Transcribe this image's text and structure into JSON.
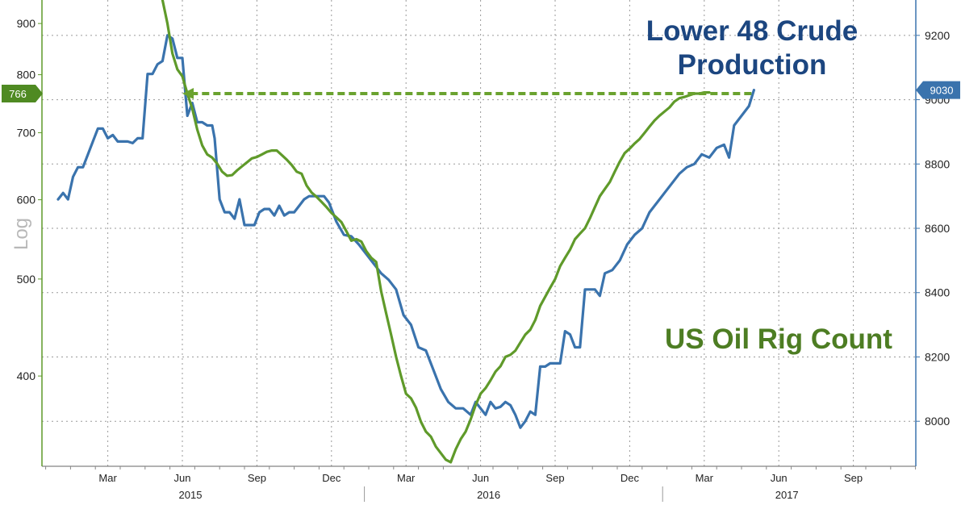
{
  "chart_data": {
    "type": "line",
    "left_axis": {
      "scale_label": "Log",
      "scale": "log",
      "ticks": [
        400,
        500,
        600,
        700,
        800,
        900
      ],
      "range": [
        325,
        950
      ],
      "marker": {
        "value": 766,
        "label": "766"
      }
    },
    "right_axis": {
      "ticks": [
        8000,
        8200,
        8400,
        8600,
        8800,
        9000,
        9200
      ],
      "range": [
        7860,
        9310
      ],
      "marker": {
        "value": 9030,
        "label": "9030"
      }
    },
    "x_axis": {
      "months": [
        {
          "t": 2,
          "label": "Mar"
        },
        {
          "t": 5,
          "label": "Jun"
        },
        {
          "t": 8,
          "label": "Sep"
        },
        {
          "t": 11,
          "label": "Dec"
        },
        {
          "t": 14,
          "label": "Mar"
        },
        {
          "t": 17,
          "label": "Jun"
        },
        {
          "t": 20,
          "label": "Sep"
        },
        {
          "t": 23,
          "label": "Dec"
        },
        {
          "t": 26,
          "label": "Mar"
        },
        {
          "t": 29,
          "label": "Jun"
        },
        {
          "t": 32,
          "label": "Sep"
        }
      ],
      "years": [
        {
          "t": 5,
          "label": "2015"
        },
        {
          "t": 17,
          "label": "2016"
        },
        {
          "t": 29,
          "label": "2017"
        }
      ],
      "year_separators": [
        12,
        24
      ]
    },
    "series": [
      {
        "name": "Lower 48 Crude Production",
        "axis": "right",
        "color": "#3a73ad",
        "points": [
          [
            0.0,
            8690
          ],
          [
            0.2,
            8710
          ],
          [
            0.4,
            8690
          ],
          [
            0.6,
            8760
          ],
          [
            0.8,
            8790
          ],
          [
            1.0,
            8790
          ],
          [
            1.2,
            8830
          ],
          [
            1.4,
            8870
          ],
          [
            1.6,
            8910
          ],
          [
            1.8,
            8910
          ],
          [
            2.0,
            8880
          ],
          [
            2.2,
            8890
          ],
          [
            2.4,
            8870
          ],
          [
            2.6,
            8870
          ],
          [
            2.8,
            8870
          ],
          [
            3.0,
            8865
          ],
          [
            3.2,
            8880
          ],
          [
            3.4,
            8880
          ],
          [
            3.6,
            9080
          ],
          [
            3.8,
            9080
          ],
          [
            4.0,
            9110
          ],
          [
            4.2,
            9120
          ],
          [
            4.4,
            9200
          ],
          [
            4.6,
            9190
          ],
          [
            4.8,
            9130
          ],
          [
            5.0,
            9130
          ],
          [
            5.2,
            8950
          ],
          [
            5.4,
            8990
          ],
          [
            5.6,
            8930
          ],
          [
            5.8,
            8930
          ],
          [
            6.0,
            8920
          ],
          [
            6.2,
            8920
          ],
          [
            6.3,
            8880
          ],
          [
            6.5,
            8690
          ],
          [
            6.7,
            8650
          ],
          [
            6.9,
            8650
          ],
          [
            7.1,
            8630
          ],
          [
            7.3,
            8690
          ],
          [
            7.5,
            8610
          ],
          [
            7.7,
            8610
          ],
          [
            7.9,
            8610
          ],
          [
            8.1,
            8650
          ],
          [
            8.3,
            8660
          ],
          [
            8.5,
            8660
          ],
          [
            8.7,
            8640
          ],
          [
            8.9,
            8670
          ],
          [
            9.1,
            8640
          ],
          [
            9.3,
            8650
          ],
          [
            9.5,
            8650
          ],
          [
            9.7,
            8670
          ],
          [
            9.9,
            8690
          ],
          [
            10.1,
            8700
          ],
          [
            10.3,
            8700
          ],
          [
            10.5,
            8700
          ],
          [
            10.7,
            8700
          ],
          [
            10.9,
            8680
          ],
          [
            11.2,
            8620
          ],
          [
            11.5,
            8580
          ],
          [
            11.8,
            8575
          ],
          [
            12.1,
            8550
          ],
          [
            12.4,
            8520
          ],
          [
            12.7,
            8490
          ],
          [
            13.0,
            8460
          ],
          [
            13.3,
            8440
          ],
          [
            13.6,
            8410
          ],
          [
            13.9,
            8330
          ],
          [
            14.2,
            8300
          ],
          [
            14.5,
            8230
          ],
          [
            14.8,
            8220
          ],
          [
            15.1,
            8160
          ],
          [
            15.4,
            8100
          ],
          [
            15.7,
            8060
          ],
          [
            16.0,
            8040
          ],
          [
            16.3,
            8040
          ],
          [
            16.6,
            8020
          ],
          [
            16.8,
            8060
          ],
          [
            17.0,
            8040
          ],
          [
            17.2,
            8020
          ],
          [
            17.4,
            8060
          ],
          [
            17.6,
            8040
          ],
          [
            17.8,
            8045
          ],
          [
            18.0,
            8060
          ],
          [
            18.2,
            8050
          ],
          [
            18.4,
            8020
          ],
          [
            18.6,
            7980
          ],
          [
            18.8,
            8000
          ],
          [
            19.0,
            8030
          ],
          [
            19.2,
            8020
          ],
          [
            19.4,
            8170
          ],
          [
            19.6,
            8170
          ],
          [
            19.8,
            8180
          ],
          [
            20.0,
            8180
          ],
          [
            20.2,
            8180
          ],
          [
            20.4,
            8280
          ],
          [
            20.6,
            8270
          ],
          [
            20.8,
            8230
          ],
          [
            21.0,
            8230
          ],
          [
            21.2,
            8410
          ],
          [
            21.4,
            8410
          ],
          [
            21.6,
            8410
          ],
          [
            21.8,
            8390
          ],
          [
            22.0,
            8460
          ],
          [
            22.3,
            8470
          ],
          [
            22.6,
            8500
          ],
          [
            22.9,
            8550
          ],
          [
            23.2,
            8580
          ],
          [
            23.5,
            8600
          ],
          [
            23.8,
            8650
          ],
          [
            24.1,
            8680
          ],
          [
            24.4,
            8710
          ],
          [
            24.7,
            8740
          ],
          [
            25.0,
            8770
          ],
          [
            25.3,
            8790
          ],
          [
            25.6,
            8800
          ],
          [
            25.9,
            8830
          ],
          [
            26.2,
            8820
          ],
          [
            26.5,
            8850
          ],
          [
            26.8,
            8860
          ],
          [
            27.0,
            8820
          ],
          [
            27.2,
            8920
          ],
          [
            27.5,
            8950
          ],
          [
            27.8,
            8980
          ],
          [
            28.0,
            9030
          ]
        ]
      },
      {
        "name": "US Oil Rig Count",
        "axis": "left",
        "color": "#5f9a2a",
        "points": [
          [
            4.2,
            950
          ],
          [
            4.4,
            900
          ],
          [
            4.6,
            840
          ],
          [
            4.8,
            810
          ],
          [
            5.0,
            797
          ],
          [
            5.2,
            766
          ],
          [
            5.4,
            740
          ],
          [
            5.6,
            705
          ],
          [
            5.8,
            680
          ],
          [
            6.0,
            666
          ],
          [
            6.2,
            661
          ],
          [
            6.4,
            652
          ],
          [
            6.6,
            640
          ],
          [
            6.8,
            634
          ],
          [
            7.0,
            635
          ],
          [
            7.2,
            642
          ],
          [
            7.4,
            648
          ],
          [
            7.6,
            654
          ],
          [
            7.8,
            660
          ],
          [
            8.0,
            662
          ],
          [
            8.2,
            666
          ],
          [
            8.4,
            670
          ],
          [
            8.6,
            672
          ],
          [
            8.8,
            672
          ],
          [
            9.0,
            665
          ],
          [
            9.2,
            658
          ],
          [
            9.4,
            650
          ],
          [
            9.6,
            640
          ],
          [
            9.8,
            637
          ],
          [
            10.0,
            620
          ],
          [
            10.2,
            610
          ],
          [
            10.4,
            604
          ],
          [
            10.6,
            597
          ],
          [
            10.8,
            590
          ],
          [
            11.0,
            582
          ],
          [
            11.2,
            576
          ],
          [
            11.4,
            570
          ],
          [
            11.6,
            558
          ],
          [
            11.8,
            546
          ],
          [
            12.0,
            548
          ],
          [
            12.2,
            545
          ],
          [
            12.4,
            533
          ],
          [
            12.6,
            525
          ],
          [
            12.8,
            520
          ],
          [
            13.0,
            486
          ],
          [
            13.2,
            462
          ],
          [
            13.4,
            440
          ],
          [
            13.6,
            418
          ],
          [
            13.8,
            400
          ],
          [
            14.0,
            384
          ],
          [
            14.2,
            380
          ],
          [
            14.4,
            372
          ],
          [
            14.6,
            360
          ],
          [
            14.8,
            352
          ],
          [
            15.0,
            348
          ],
          [
            15.2,
            340
          ],
          [
            15.4,
            335
          ],
          [
            15.6,
            330
          ],
          [
            15.8,
            328
          ],
          [
            16.0,
            338
          ],
          [
            16.2,
            346
          ],
          [
            16.4,
            352
          ],
          [
            16.6,
            362
          ],
          [
            16.8,
            374
          ],
          [
            17.0,
            384
          ],
          [
            17.2,
            389
          ],
          [
            17.4,
            396
          ],
          [
            17.6,
            404
          ],
          [
            17.8,
            409
          ],
          [
            18.0,
            418
          ],
          [
            18.2,
            420
          ],
          [
            18.4,
            424
          ],
          [
            18.6,
            432
          ],
          [
            18.8,
            440
          ],
          [
            19.0,
            445
          ],
          [
            19.2,
            455
          ],
          [
            19.4,
            470
          ],
          [
            19.6,
            480
          ],
          [
            19.8,
            490
          ],
          [
            20.0,
            500
          ],
          [
            20.2,
            515
          ],
          [
            20.4,
            525
          ],
          [
            20.6,
            535
          ],
          [
            20.8,
            548
          ],
          [
            21.0,
            555
          ],
          [
            21.2,
            562
          ],
          [
            21.4,
            575
          ],
          [
            21.6,
            590
          ],
          [
            21.8,
            605
          ],
          [
            22.0,
            615
          ],
          [
            22.2,
            625
          ],
          [
            22.4,
            640
          ],
          [
            22.6,
            655
          ],
          [
            22.8,
            668
          ],
          [
            23.0,
            675
          ],
          [
            23.2,
            683
          ],
          [
            23.4,
            690
          ],
          [
            23.6,
            700
          ],
          [
            23.8,
            710
          ],
          [
            24.0,
            720
          ],
          [
            24.2,
            728
          ],
          [
            24.4,
            735
          ],
          [
            24.6,
            742
          ],
          [
            24.8,
            752
          ],
          [
            25.0,
            758
          ],
          [
            25.2,
            760
          ],
          [
            25.4,
            763
          ],
          [
            25.6,
            766
          ],
          [
            25.8,
            766
          ],
          [
            26.0,
            768
          ],
          [
            26.2,
            768
          ]
        ]
      }
    ],
    "annotations": [
      {
        "text_lines": [
          "Lower 48 Crude",
          "Production"
        ],
        "color": "#1c4680"
      },
      {
        "text_lines": [
          "US Oil Rig Count"
        ],
        "color": "#4d7d23"
      },
      {
        "type": "dashed-arrow",
        "from_t": 27.9,
        "to_t": 5.0,
        "value": 766,
        "axis": "left",
        "color": "#6aa22f"
      }
    ]
  }
}
